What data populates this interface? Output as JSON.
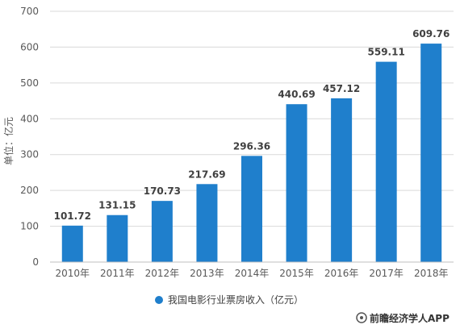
{
  "chart_data": {
    "type": "bar",
    "categories": [
      "2010年",
      "2011年",
      "2012年",
      "2013年",
      "2014年",
      "2015年",
      "2016年",
      "2017年",
      "2018年"
    ],
    "series": [
      {
        "name": "我国电影行业票房收入（亿元）",
        "values": [
          101.72,
          131.15,
          170.73,
          217.69,
          296.36,
          440.69,
          457.12,
          559.11,
          609.76
        ]
      }
    ],
    "value_labels": [
      "101.72",
      "131.15",
      "170.73",
      "217.69",
      "296.36",
      "440.69",
      "457.12",
      "559.11",
      "609.76"
    ],
    "ylabel": "单位：亿元",
    "ylim": [
      0,
      700
    ],
    "yticks": [
      0,
      100,
      200,
      300,
      400,
      500,
      600,
      700
    ],
    "grid": true,
    "legend_position": "bottom",
    "bar_color": "#1f7fcc"
  },
  "source": "前瞻经济学人APP"
}
